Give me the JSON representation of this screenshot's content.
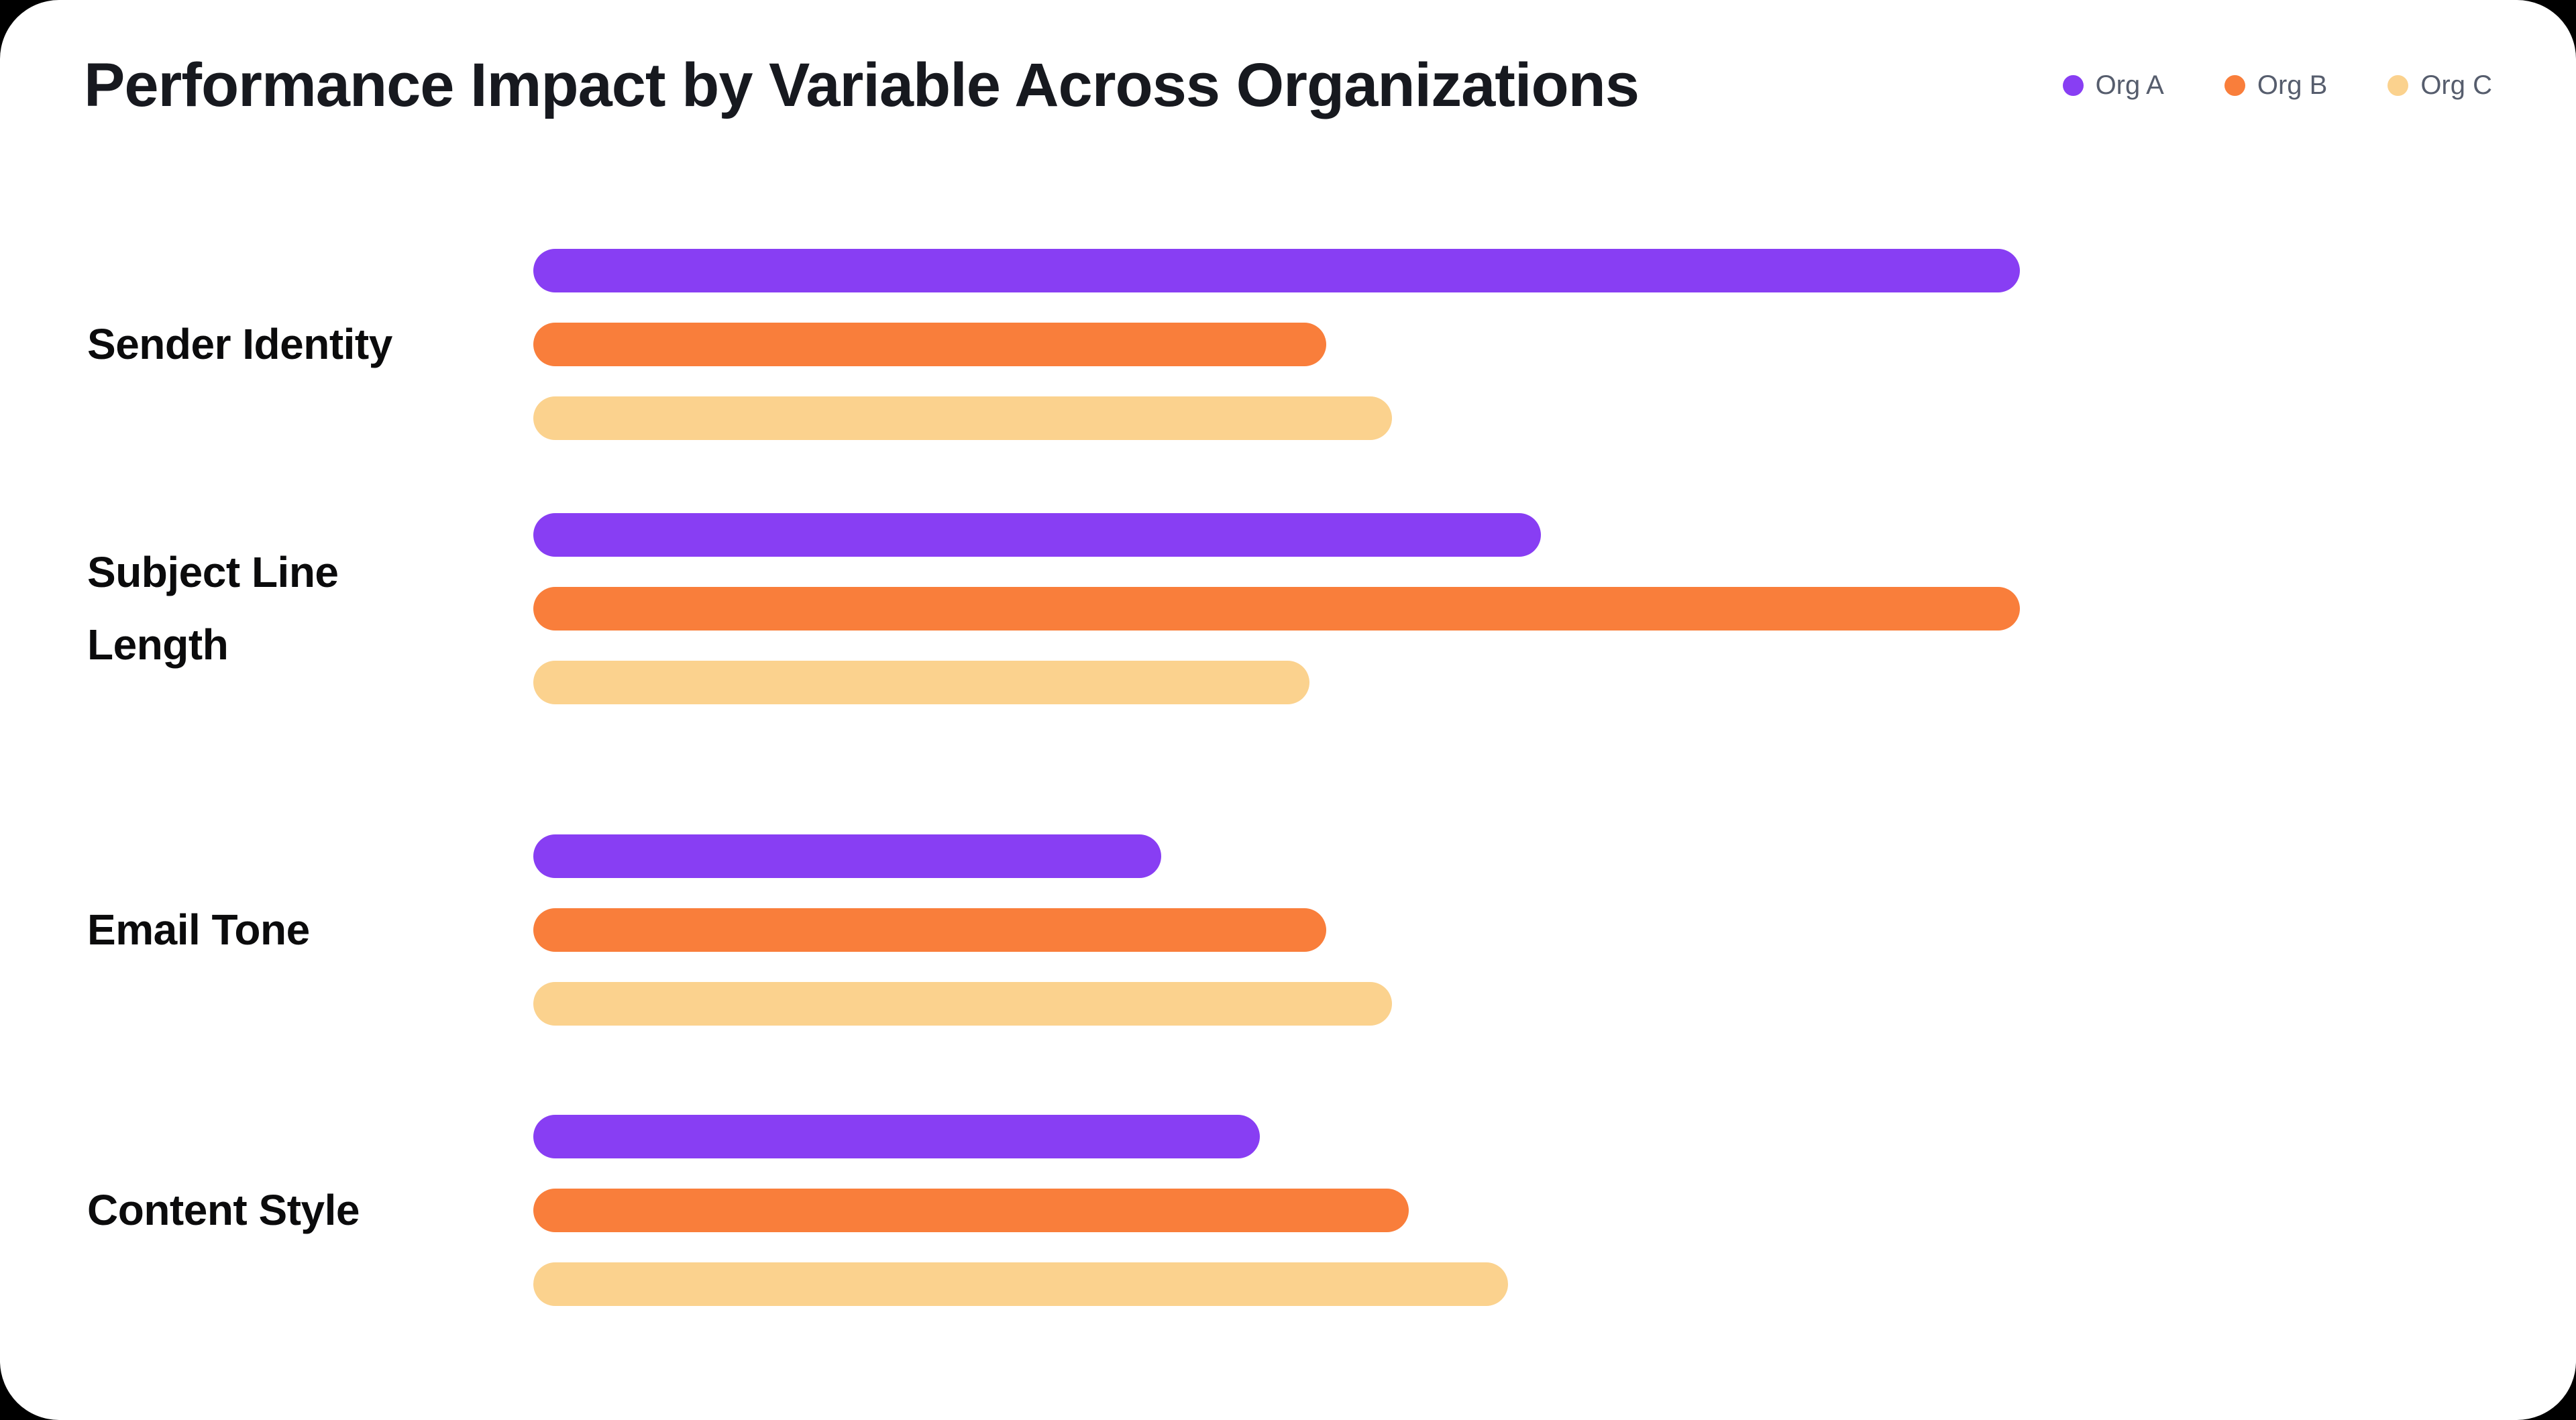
{
  "header": {
    "title": "Performance Impact by Variable Across Organizations"
  },
  "chart_data": {
    "type": "bar",
    "orientation": "horizontal",
    "title": "Performance Impact by Variable Across Organizations",
    "categories": [
      "Sender Identity",
      "Subject Line Length",
      "Email Tone",
      "Content Style"
    ],
    "series": [
      {
        "name": "Org A",
        "color": "#883ef3",
        "values": [
          90,
          61,
          38,
          44
        ]
      },
      {
        "name": "Org B",
        "color": "#f97e3b",
        "values": [
          48,
          90,
          48,
          53
        ]
      },
      {
        "name": "Org C",
        "color": "#fbd28e",
        "values": [
          52,
          47,
          52,
          59
        ]
      }
    ],
    "xlim": [
      0,
      100
    ],
    "grid": false,
    "axes_visible": false,
    "legend_position": "top-right",
    "bar_shape": "pill"
  },
  "colors": {
    "background": "#000000",
    "card": "#ffffff",
    "title_text": "#17191f",
    "category_text": "#0b0b0c",
    "legend_text": "#565d6d"
  }
}
